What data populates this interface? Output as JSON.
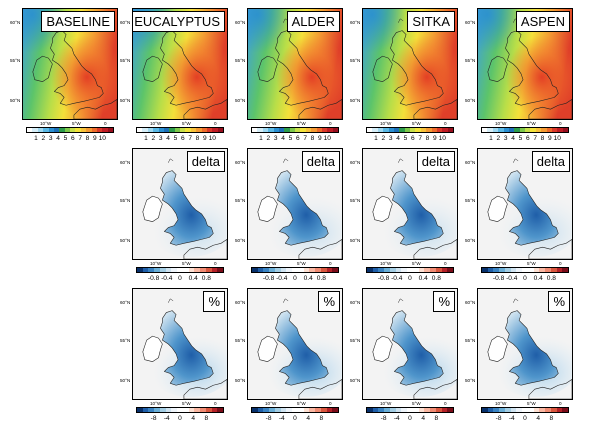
{
  "panels": [
    {
      "title": "BASELINE",
      "kind": "baseline",
      "ticks": [
        "1",
        "2",
        "3",
        "4",
        "5",
        "6",
        "7",
        "8",
        "9",
        "10"
      ]
    },
    {
      "title": "EUCALYPTUS",
      "kind": "baseline",
      "ticks": [
        "1",
        "2",
        "3",
        "4",
        "5",
        "6",
        "7",
        "8",
        "9",
        "10"
      ]
    },
    {
      "title": "ALDER",
      "kind": "baseline",
      "ticks": [
        "1",
        "2",
        "3",
        "4",
        "5",
        "6",
        "7",
        "8",
        "9",
        "10"
      ]
    },
    {
      "title": "SITKA",
      "kind": "baseline",
      "ticks": [
        "1",
        "2",
        "3",
        "4",
        "5",
        "6",
        "7",
        "8",
        "9",
        "10"
      ]
    },
    {
      "title": "ASPEN",
      "kind": "baseline",
      "ticks": [
        "1",
        "2",
        "3",
        "4",
        "5",
        "6",
        "7",
        "8",
        "9",
        "10"
      ]
    },
    {
      "title": "delta",
      "kind": "delta",
      "ticks": [
        "-0.8",
        "-0.4",
        "0",
        "0.4",
        "0.8"
      ]
    },
    {
      "title": "delta",
      "kind": "delta",
      "ticks": [
        "-0.8",
        "-0.4",
        "0",
        "0.4",
        "0.8"
      ]
    },
    {
      "title": "delta",
      "kind": "delta",
      "ticks": [
        "-0.8",
        "-0.4",
        "0",
        "0.4",
        "0.8"
      ]
    },
    {
      "title": "delta",
      "kind": "delta",
      "ticks": [
        "-0.8",
        "-0.4",
        "0",
        "0.4",
        "0.8"
      ]
    },
    {
      "title": "%",
      "kind": "percent",
      "ticks": [
        "-8",
        "-4",
        "0",
        "4",
        "8"
      ]
    },
    {
      "title": "%",
      "kind": "percent",
      "ticks": [
        "-8",
        "-4",
        "0",
        "4",
        "8"
      ]
    },
    {
      "title": "%",
      "kind": "percent",
      "ticks": [
        "-8",
        "-4",
        "0",
        "4",
        "8"
      ]
    },
    {
      "title": "%",
      "kind": "percent",
      "ticks": [
        "-8",
        "-4",
        "0",
        "4",
        "8"
      ]
    }
  ],
  "axes": {
    "lat_labels": [
      "60°N",
      "55°N",
      "50°N"
    ],
    "lon_labels": [
      "10°W",
      "5°W",
      "0"
    ]
  },
  "colors": {
    "baseline_scale": [
      "#ffffff",
      "#d6eef8",
      "#9ed7f0",
      "#5bb8e4",
      "#2a8fd1",
      "#1e6fb7",
      "#2c9c4b",
      "#7cc84a",
      "#c6df4a",
      "#f3e33a",
      "#f8c13a",
      "#f59a33",
      "#ee6b2b",
      "#db3a2a",
      "#c01d24",
      "#960f1e"
    ],
    "diverging_scale": [
      "#08306b",
      "#1f5ea8",
      "#3a83c2",
      "#6aaed6",
      "#a3cde3",
      "#cfe3f0",
      "#eef4fa",
      "#ffffff",
      "#ffffff",
      "#fde0d2",
      "#f9b7a2",
      "#f08b73",
      "#d9573f",
      "#b52127",
      "#7a0c18"
    ]
  }
}
